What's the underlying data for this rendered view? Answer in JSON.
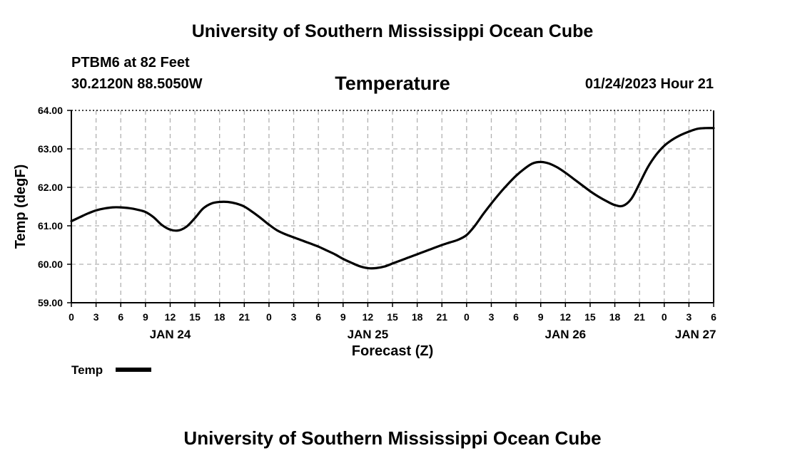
{
  "page": {
    "top_title": "University of Southern Mississippi Ocean Cube",
    "bottom_title": "University of Southern Mississippi Ocean Cube",
    "station": "PTBM6 at 82 Feet",
    "coords": "30.2120N  88.5050W",
    "datetime": "01/24/2023 Hour 21"
  },
  "chart_data": {
    "type": "line",
    "title": "Temperature",
    "xlabel": "Forecast (Z)",
    "ylabel": "Temp (degF)",
    "ylim": [
      59.0,
      64.0
    ],
    "xlim": [
      0,
      78
    ],
    "x_unit": "hours from JAN 24 00Z",
    "grid": true,
    "yticks": [
      59.0,
      60.0,
      61.0,
      62.0,
      63.0,
      64.0
    ],
    "ytick_labels": [
      "59.00",
      "60.00",
      "61.00",
      "62.00",
      "63.00",
      "64.00"
    ],
    "xticks": [
      0,
      3,
      6,
      9,
      12,
      15,
      18,
      21,
      24,
      27,
      30,
      33,
      36,
      39,
      42,
      45,
      48,
      51,
      54,
      57,
      60,
      63,
      66,
      69,
      72,
      75,
      78
    ],
    "xtick_labels": [
      "0",
      "3",
      "6",
      "9",
      "12",
      "15",
      "18",
      "21",
      "0",
      "3",
      "6",
      "9",
      "12",
      "15",
      "18",
      "21",
      "0",
      "3",
      "6",
      "9",
      "12",
      "15",
      "18",
      "21",
      "0",
      "3",
      "6"
    ],
    "date_labels": [
      {
        "label": "JAN 24",
        "at": 12
      },
      {
        "label": "JAN 25",
        "at": 36
      },
      {
        "label": "JAN 26",
        "at": 60
      },
      {
        "label": "JAN 27",
        "at": 75.8
      }
    ],
    "legend": [
      {
        "name": "Temp",
        "color": "#000000",
        "placement": "bottom-left"
      }
    ],
    "series": [
      {
        "name": "Temp",
        "color": "#000000",
        "x": [
          0,
          1,
          2,
          3,
          4,
          5,
          6,
          7,
          8,
          9,
          10,
          11,
          12,
          13,
          14,
          15,
          16,
          17,
          18,
          19,
          20,
          21,
          22,
          23,
          24,
          25,
          26,
          27,
          28,
          29,
          30,
          31,
          32,
          33,
          34,
          35,
          36,
          37,
          38,
          39,
          40,
          41,
          42,
          43,
          44,
          45,
          46,
          47,
          48,
          49,
          50,
          51,
          52,
          53,
          54,
          55,
          56,
          57,
          58,
          59,
          60,
          61,
          62,
          63,
          64,
          65,
          66,
          67,
          68,
          69,
          70,
          71,
          72,
          73,
          74,
          75,
          76,
          77,
          78
        ],
        "y": [
          61.12,
          61.22,
          61.32,
          61.4,
          61.45,
          61.48,
          61.48,
          61.46,
          61.42,
          61.36,
          61.22,
          61.02,
          60.9,
          60.88,
          60.98,
          61.2,
          61.45,
          61.58,
          61.62,
          61.62,
          61.58,
          61.5,
          61.36,
          61.2,
          61.03,
          60.88,
          60.78,
          60.7,
          60.62,
          60.54,
          60.46,
          60.36,
          60.26,
          60.14,
          60.04,
          59.95,
          59.9,
          59.9,
          59.94,
          60.02,
          60.1,
          60.18,
          60.26,
          60.34,
          60.42,
          60.5,
          60.57,
          60.64,
          60.76,
          61.0,
          61.3,
          61.58,
          61.84,
          62.08,
          62.3,
          62.48,
          62.62,
          62.66,
          62.62,
          62.52,
          62.38,
          62.22,
          62.06,
          61.9,
          61.76,
          61.64,
          61.54,
          61.52,
          61.7,
          62.1,
          62.52,
          62.84,
          63.08,
          63.24,
          63.36,
          63.45,
          63.52,
          63.54,
          63.54
        ]
      }
    ]
  }
}
